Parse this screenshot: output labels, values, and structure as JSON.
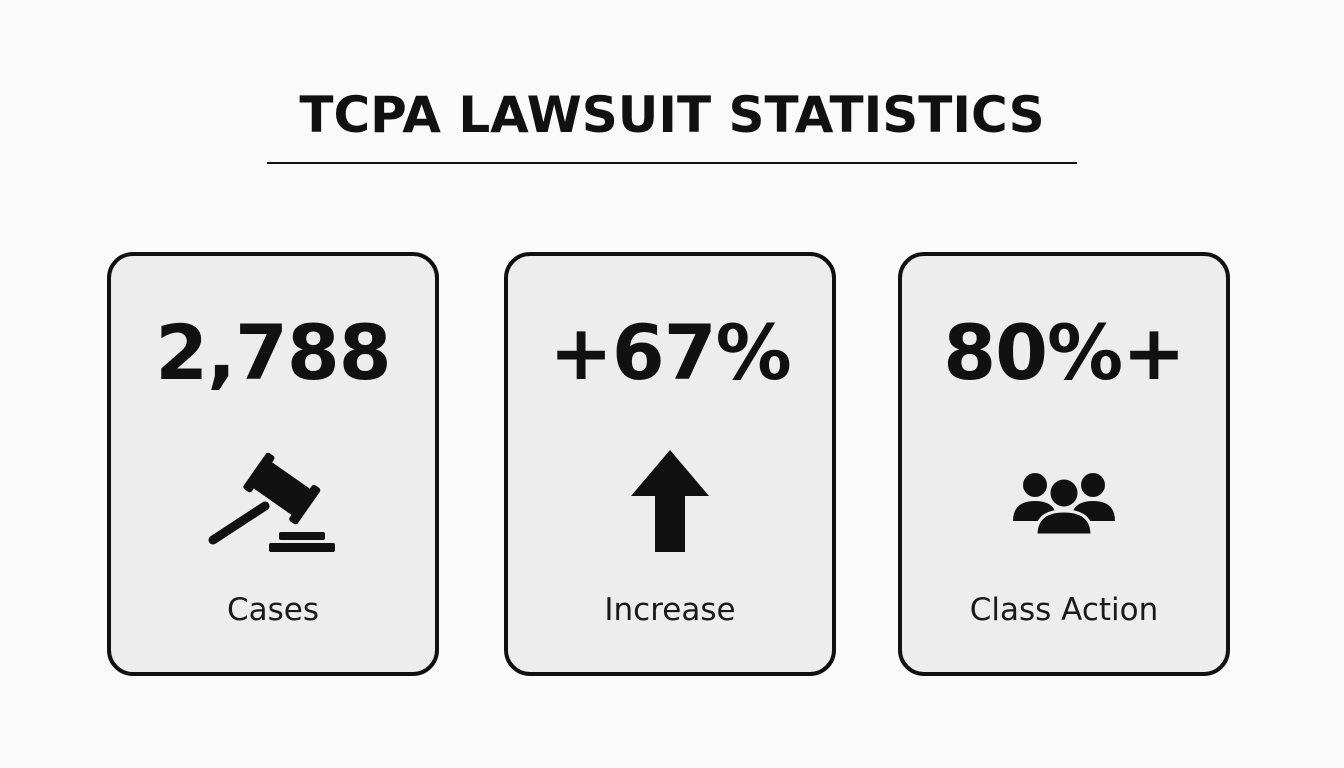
{
  "title": "TCPA LAWSUIT STATISTICS",
  "stats": [
    {
      "value": "2,788",
      "label": "Cases",
      "icon": "gavel-icon"
    },
    {
      "value": "+67%",
      "label": "Increase",
      "icon": "arrow-up-icon"
    },
    {
      "value": "80%+",
      "label": "Class Action",
      "icon": "group-icon"
    }
  ],
  "colors": {
    "background": "#fafafa",
    "card": "#ededed",
    "ink": "#111111"
  }
}
